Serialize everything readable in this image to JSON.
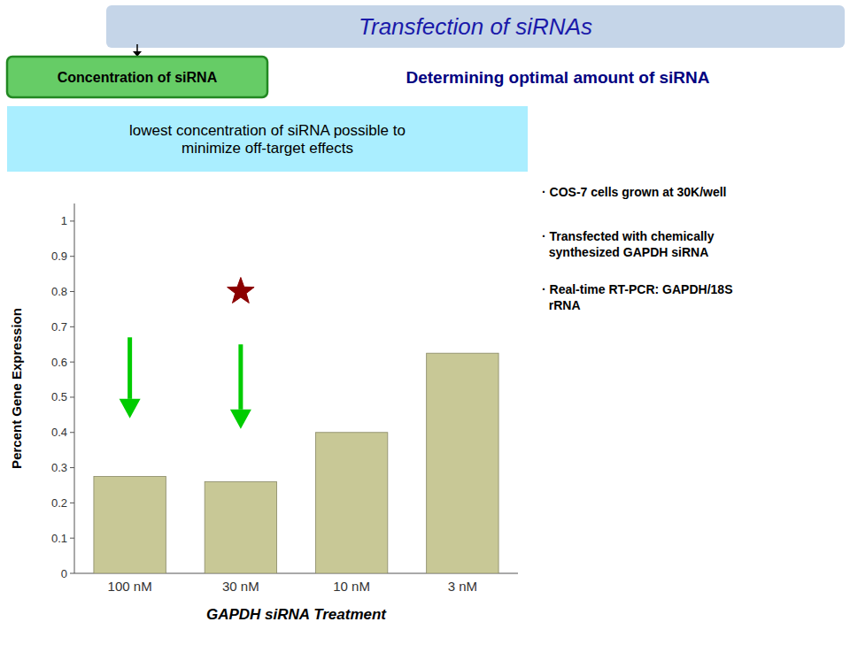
{
  "chart_data": {
    "type": "bar",
    "title": "Transfection of siRNAs",
    "annotations": [
      "Concentration of siRNA",
      "Determining optimal amount of siRNA",
      "lowest concentration of siRNA possible to\nminimize off-target effects",
      "· COS-7 cells grown at 30K/well",
      "· Transfected with chemically\n  synthesized GAPDH siRNA",
      "· Real-time RT-PCR: GAPDH/18S\n  rRNA"
    ],
    "categories": [
      "100 nM",
      "30 nM",
      "10 nM",
      "3 nM"
    ],
    "values": [
      0.275,
      0.26,
      0.4,
      0.625
    ],
    "color": "#c8c896",
    "xlabel": "GAPDH siRNA Treatment",
    "ylabel": "Percent Gene Expression",
    "ylim": [
      0,
      1.05
    ],
    "yticks": [
      0,
      0.1,
      0.2,
      0.3,
      0.4,
      0.5,
      0.6,
      0.7,
      0.8,
      0.9,
      1
    ],
    "grid": false,
    "arrows": [
      {
        "x": "100 nM",
        "from": 0.67,
        "to": 0.44,
        "color": "#00cc00"
      },
      {
        "x": "30 nM",
        "from": 0.65,
        "to": 0.41,
        "color": "#00cc00"
      }
    ],
    "markers": [
      {
        "x": "30 nM",
        "y": 0.8,
        "marker": "star",
        "color": "#8b0000"
      }
    ]
  }
}
